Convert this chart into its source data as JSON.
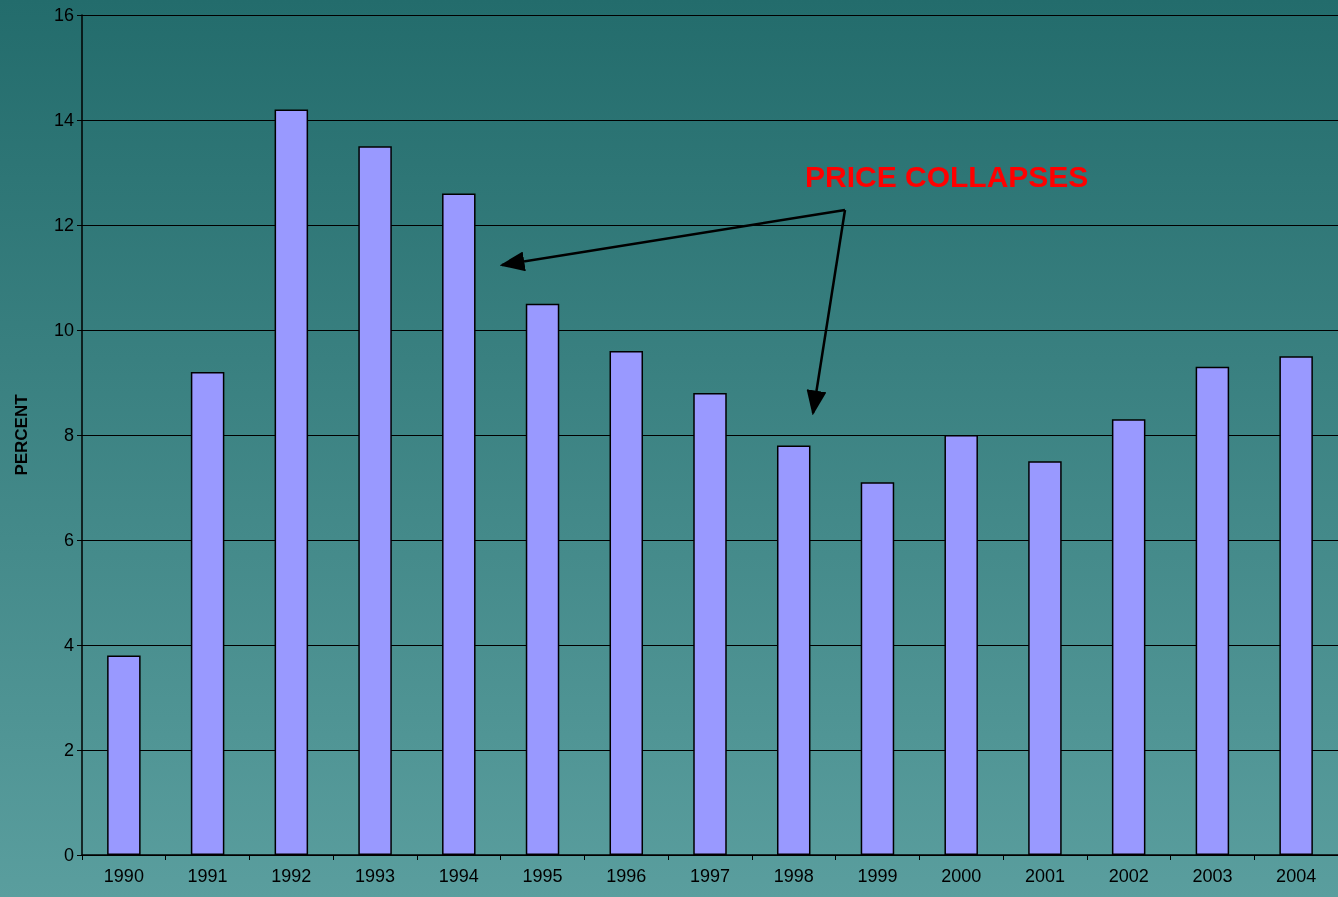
{
  "chart_data": {
    "type": "bar",
    "ylabel": "PERCENT",
    "annotations": [
      "PRICE COLLAPSES"
    ],
    "categories": [
      "1990",
      "1991",
      "1992",
      "1993",
      "1994",
      "1995",
      "1996",
      "1997",
      "1998",
      "1999",
      "2000",
      "2001",
      "2002",
      "2003",
      "2004"
    ],
    "values": [
      3.8,
      9.2,
      14.2,
      13.5,
      12.6,
      10.5,
      9.6,
      8.8,
      7.8,
      7.1,
      8.0,
      7.5,
      8.3,
      9.3,
      9.5
    ],
    "color": "#9999ff",
    "ylim": [
      0,
      16
    ],
    "yticks": [
      0,
      2,
      4,
      6,
      8,
      10,
      12,
      14,
      16
    ],
    "grid": "y"
  }
}
